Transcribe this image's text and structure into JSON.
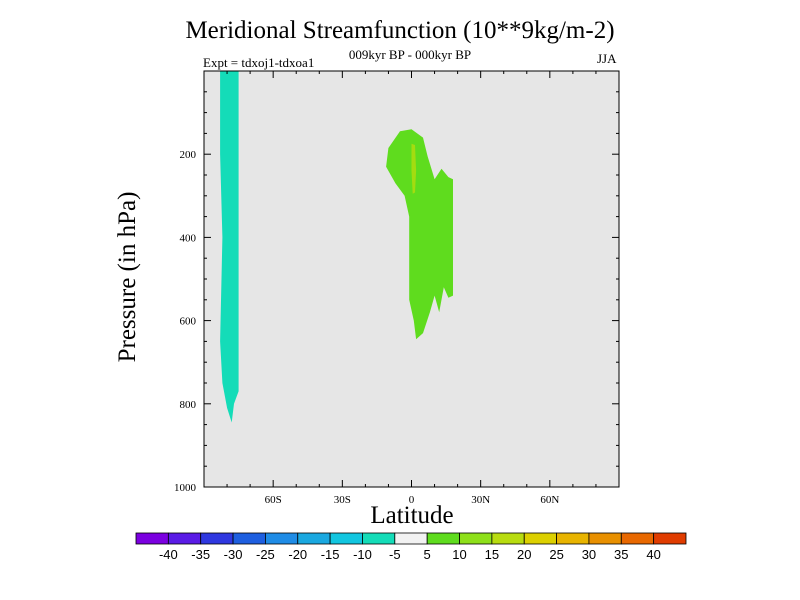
{
  "chart_data": {
    "type": "contour",
    "title": "Meridional Streamfunction (10**9kg/m-2)",
    "subtitle": "009kyr BP - 000kyr BP",
    "experiment": "Expt = tdxoj1-tdxoa1",
    "season": "JJA",
    "xlabel": "Latitude",
    "ylabel": "Pressure (in hPa)",
    "x_tick_labels": [
      "60S",
      "30S",
      "0",
      "30N",
      "60N"
    ],
    "x_tick_values": [
      -60,
      -30,
      0,
      30,
      60
    ],
    "y_tick_labels": [
      "200",
      "400",
      "600",
      "800",
      "1000"
    ],
    "y_tick_values": [
      200,
      400,
      600,
      800,
      1000
    ],
    "xlim": [
      -90,
      90
    ],
    "ylim": [
      1000,
      0
    ],
    "background_color": "#e6e6e6",
    "colorbar": {
      "labels": [
        "-40",
        "-35",
        "-30",
        "-25",
        "-20",
        "-15",
        "-10",
        "-5",
        "5",
        "10",
        "15",
        "20",
        "25",
        "30",
        "35",
        "40"
      ],
      "colors": [
        "#7b00e0",
        "#5a1be6",
        "#2f38e0",
        "#1e5fe0",
        "#1f8ce6",
        "#1aa8e0",
        "#12c6e0",
        "#14dcb8",
        "#f2f2f2",
        "#5fdc1e",
        "#8ee01a",
        "#b8dc10",
        "#dcd000",
        "#e8b400",
        "#e89000",
        "#e86800",
        "#e03c00"
      ]
    },
    "regions": [
      {
        "name": "southern-negative-cell",
        "level": "-10 to -5",
        "color": "#14dcb8",
        "lat_range": [
          -83,
          -75
        ],
        "pressure_range": [
          0,
          845
        ],
        "outline": [
          [
            -83,
            0
          ],
          [
            -75,
            0
          ],
          [
            -75,
            770
          ],
          [
            -77,
            800
          ],
          [
            -78,
            845
          ],
          [
            -80,
            810
          ],
          [
            -82,
            750
          ],
          [
            -83,
            650
          ],
          [
            -82,
            400
          ],
          [
            -83,
            200
          ],
          [
            -83,
            0
          ]
        ]
      },
      {
        "name": "tropical-positive-cell",
        "level": "5 to 10",
        "color": "#5fdc1e",
        "lat_range": [
          -11,
          18
        ],
        "pressure_range": [
          140,
          645
        ],
        "outline": [
          [
            -11,
            230
          ],
          [
            -10,
            185
          ],
          [
            -5,
            145
          ],
          [
            0,
            140
          ],
          [
            5,
            160
          ],
          [
            7,
            205
          ],
          [
            10,
            260
          ],
          [
            13,
            235
          ],
          [
            16,
            255
          ],
          [
            18,
            260
          ],
          [
            18,
            540
          ],
          [
            16,
            545
          ],
          [
            14,
            520
          ],
          [
            12,
            580
          ],
          [
            10,
            540
          ],
          [
            8,
            580
          ],
          [
            5,
            630
          ],
          [
            2,
            645
          ],
          [
            1,
            600
          ],
          [
            -1,
            550
          ],
          [
            -1,
            350
          ],
          [
            -3,
            300
          ],
          [
            -7,
            270
          ],
          [
            -11,
            230
          ]
        ]
      },
      {
        "name": "tropical-positive-core",
        "level": "10 to 15",
        "color": "#a4dc10",
        "lat_range": [
          0,
          2
        ],
        "pressure_range": [
          175,
          295
        ],
        "outline": [
          [
            0,
            175
          ],
          [
            1.5,
            178
          ],
          [
            2,
            240
          ],
          [
            1.5,
            292
          ],
          [
            0.5,
            295
          ],
          [
            0,
            240
          ],
          [
            0,
            175
          ]
        ]
      }
    ]
  }
}
